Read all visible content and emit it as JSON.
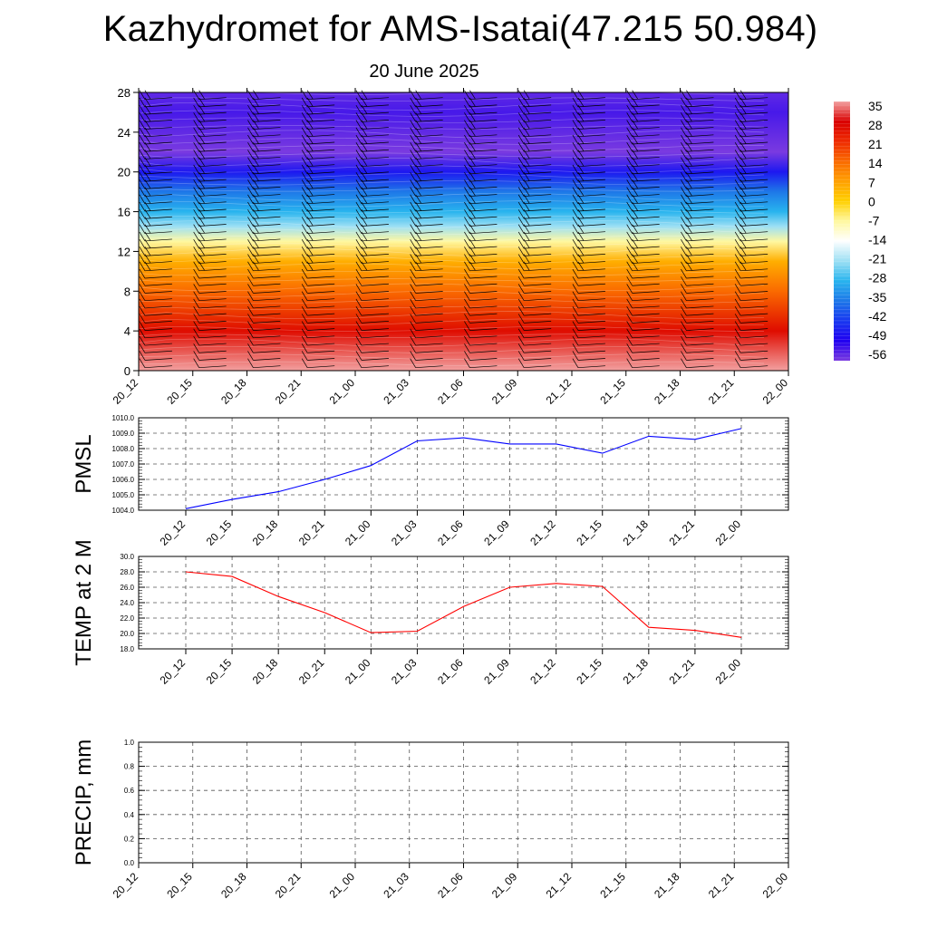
{
  "title": "Kazhydromet for AMS-Isatai(47.215 50.984)",
  "subtitle": "20 June 2025",
  "chart_data": [
    {
      "type": "heatmap",
      "ylim": [
        0,
        28
      ],
      "yticks": [
        "0",
        "4",
        "8",
        "12",
        "16",
        "20",
        "24",
        "28"
      ],
      "xticks": [
        "20_12",
        "20_15",
        "20_18",
        "20_21",
        "21_00",
        "21_03",
        "21_06",
        "21_09",
        "21_12",
        "21_15",
        "21_18",
        "21_21",
        "22_00"
      ],
      "colorbar": {
        "labels": [
          "35",
          "28",
          "21",
          "14",
          "7",
          "0",
          "-7",
          "-14",
          "-21",
          "-28",
          "-35",
          "-42",
          "-49",
          "-56"
        ],
        "colors": [
          "#f2a0a0",
          "#d90000",
          "#ee2a00",
          "#fa6a00",
          "#ffa000",
          "#ffd000",
          "#fff8a0",
          "#ffffff",
          "#9ee0f4",
          "#28b4ee",
          "#1e78e8",
          "#1838f0",
          "#2000f0",
          "#7a3ae0"
        ]
      },
      "profile": [
        {
          "level": 0,
          "value": 35
        },
        {
          "level": 4,
          "value": 26
        },
        {
          "level": 8,
          "value": 14
        },
        {
          "level": 11,
          "value": 5
        },
        {
          "level": 13,
          "value": -7
        },
        {
          "level": 14.5,
          "value": -21
        },
        {
          "level": 16,
          "value": -28
        },
        {
          "level": 18,
          "value": -35
        },
        {
          "level": 20,
          "value": -46
        },
        {
          "level": 22,
          "value": -56
        },
        {
          "level": 26,
          "value": -52
        },
        {
          "level": 28,
          "value": -54
        }
      ],
      "wind_barbs": true
    },
    {
      "type": "line",
      "ylabel": "PMSL",
      "ylim": [
        1004.0,
        1010.0
      ],
      "yticks": [
        "1004.0",
        "1005.0",
        "1006.0",
        "1007.0",
        "1008.0",
        "1009.0",
        "1010.0"
      ],
      "categories": [
        "20_12",
        "20_15",
        "20_18",
        "20_21",
        "21_00",
        "21_03",
        "21_06",
        "21_09",
        "21_12",
        "21_15",
        "21_18",
        "21_21",
        "22_00"
      ],
      "series": [
        {
          "color": "#0000ff",
          "values": [
            1004.1,
            1004.7,
            1005.2,
            1006.0,
            1006.9,
            1008.5,
            1008.7,
            1008.3,
            1008.3,
            1007.7,
            1008.8,
            1008.6,
            1009.3
          ]
        }
      ],
      "grid": true
    },
    {
      "type": "line",
      "ylabel": "TEMP at 2 M",
      "ylim": [
        18.0,
        30.0
      ],
      "yticks": [
        "18.0",
        "20.0",
        "22.0",
        "24.0",
        "26.0",
        "28.0",
        "30.0"
      ],
      "categories": [
        "20_12",
        "20_15",
        "20_18",
        "20_21",
        "21_00",
        "21_03",
        "21_06",
        "21_09",
        "21_12",
        "21_15",
        "21_18",
        "21_21",
        "22_00"
      ],
      "series": [
        {
          "color": "#ff0000",
          "values": [
            28.0,
            27.4,
            24.8,
            22.7,
            20.1,
            20.3,
            23.5,
            26.0,
            26.5,
            26.1,
            20.8,
            20.4,
            19.5
          ]
        }
      ],
      "grid": true
    },
    {
      "type": "line",
      "ylabel": "PRECIP, mm",
      "ylim": [
        0.0,
        1.0
      ],
      "yticks": [
        "0.0",
        "0.2",
        "0.4",
        "0.6",
        "0.8",
        "1.0"
      ],
      "categories": [
        "20_12",
        "20_15",
        "20_18",
        "20_21",
        "21_00",
        "21_03",
        "21_06",
        "21_09",
        "21_12",
        "21_15",
        "21_18",
        "21_21",
        "22_00"
      ],
      "series": [
        {
          "color": "#008000",
          "values": [
            0,
            0,
            0,
            0,
            0,
            0,
            0,
            0,
            0,
            0,
            0,
            0,
            0
          ]
        }
      ],
      "grid": true
    }
  ]
}
